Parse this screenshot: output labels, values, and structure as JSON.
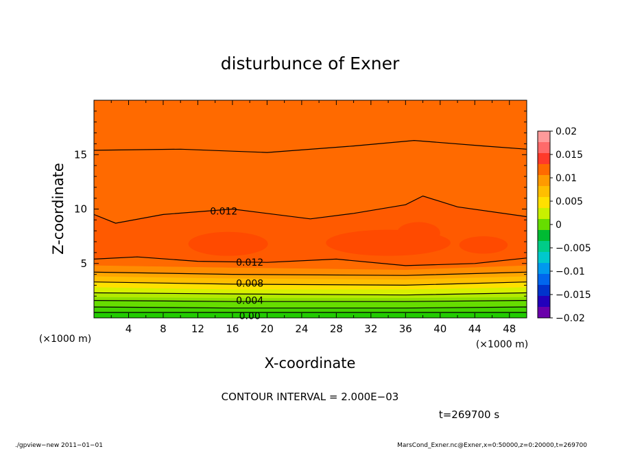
{
  "chart_data": {
    "type": "contour",
    "title": "disturbunce of Exner",
    "xlabel": "X-coordinate",
    "ylabel": "Z-coordinate",
    "x_unit": "(×1000 m)",
    "y_unit": "(×1000 m)",
    "xlim": [
      0,
      50
    ],
    "ylim": [
      0,
      20
    ],
    "x_ticks": [
      4,
      8,
      12,
      16,
      20,
      24,
      28,
      32,
      36,
      40,
      44,
      48
    ],
    "y_ticks": [
      5,
      10,
      15
    ],
    "contour_labels": [
      {
        "text": "0.012",
        "x": 15,
        "z": 9.8
      },
      {
        "text": "0.012",
        "x": 18,
        "z": 5.1
      },
      {
        "text": "0.008",
        "x": 18,
        "z": 3.2
      },
      {
        "text": "0.004",
        "x": 18,
        "z": 1.6
      },
      {
        "text": "0.00",
        "x": 18,
        "z": 0.2
      }
    ],
    "contour_lines": [
      {
        "level": 0.0,
        "points": [
          [
            0,
            0.5
          ],
          [
            50,
            0.5
          ]
        ]
      },
      {
        "level": 0.002,
        "points": [
          [
            0,
            1.0
          ],
          [
            16,
            0.9
          ],
          [
            36,
            0.9
          ],
          [
            50,
            1.0
          ]
        ]
      },
      {
        "level": 0.004,
        "points": [
          [
            0,
            1.6
          ],
          [
            16,
            1.5
          ],
          [
            36,
            1.5
          ],
          [
            50,
            1.6
          ]
        ]
      },
      {
        "level": 0.006,
        "points": [
          [
            0,
            2.3
          ],
          [
            16,
            2.2
          ],
          [
            36,
            2.1
          ],
          [
            50,
            2.3
          ]
        ]
      },
      {
        "level": 0.008,
        "points": [
          [
            0,
            3.3
          ],
          [
            16,
            3.1
          ],
          [
            36,
            3.0
          ],
          [
            50,
            3.3
          ]
        ]
      },
      {
        "level": 0.01,
        "points": [
          [
            0,
            4.2
          ],
          [
            16,
            4.0
          ],
          [
            36,
            3.9
          ],
          [
            50,
            4.2
          ]
        ]
      },
      {
        "level": 0.012,
        "points": [
          [
            0,
            5.4
          ],
          [
            5,
            5.6
          ],
          [
            12,
            5.2
          ],
          [
            20,
            5.1
          ],
          [
            28,
            5.4
          ],
          [
            36,
            4.8
          ],
          [
            44,
            5.0
          ],
          [
            50,
            5.5
          ]
        ]
      },
      {
        "level": 0.012,
        "points": [
          [
            0,
            9.5
          ],
          [
            2.5,
            8.7
          ],
          [
            8,
            9.5
          ],
          [
            16,
            10.0
          ],
          [
            25,
            9.1
          ],
          [
            30,
            9.6
          ],
          [
            36,
            10.4
          ],
          [
            38,
            11.2
          ],
          [
            42,
            10.2
          ],
          [
            50,
            9.3
          ]
        ]
      },
      {
        "level": 0.01,
        "points": [
          [
            0,
            15.4
          ],
          [
            10,
            15.5
          ],
          [
            20,
            15.2
          ],
          [
            30,
            15.8
          ],
          [
            37,
            16.3
          ],
          [
            45,
            15.8
          ],
          [
            50,
            15.5
          ]
        ]
      }
    ],
    "fill_levels": [
      -0.02,
      -0.015,
      -0.01,
      -0.005,
      0,
      0.005,
      0.01,
      0.015,
      0.02
    ],
    "colorbar": {
      "ticks": [
        "0.02",
        "0.015",
        "0.01",
        "0.005",
        "0",
        "−0.005",
        "−0.01",
        "−0.015",
        "−0.02"
      ],
      "colors": [
        "#ff9a9a",
        "#ff6a6a",
        "#ff3a2a",
        "#ff6a00",
        "#ff9a00",
        "#ffbe00",
        "#ffe000",
        "#c8f000",
        "#66dd00",
        "#00bb33",
        "#00cc88",
        "#00c8cc",
        "#0099ee",
        "#0066ee",
        "#0033cc",
        "#2200bb",
        "#6a00aa"
      ]
    }
  },
  "annotations": {
    "contour_interval": "CONTOUR INTERVAL = 2.000E−03",
    "time": "t=269700 s",
    "footer_left": "./gpview−new  2011−01−01",
    "footer_right": "MarsCond_Exner.nc@Exner,x=0:50000,z=0:20000,t=269700"
  }
}
